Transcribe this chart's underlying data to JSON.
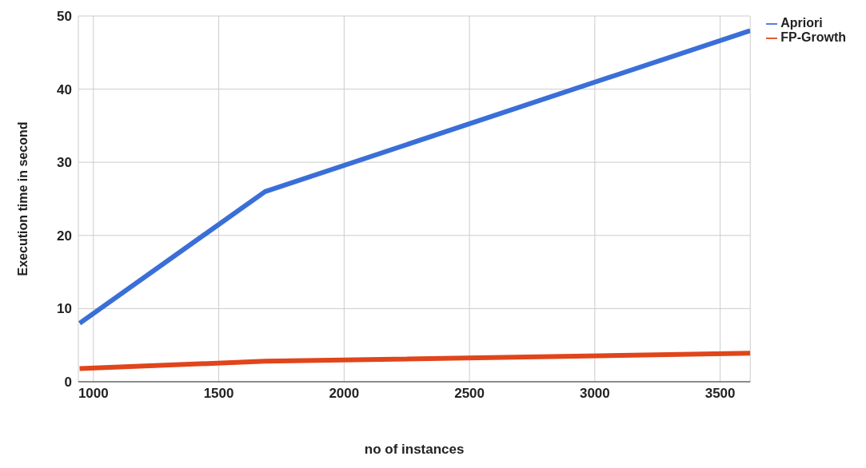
{
  "chart_data": {
    "type": "line",
    "xlabel": "no of instances",
    "ylabel": "Execution time in second",
    "x": [
      945,
      1685,
      3620
    ],
    "series": [
      {
        "name": "Apriori",
        "color": "#3a6fd8",
        "values": [
          8,
          26,
          48
        ]
      },
      {
        "name": "FP-Growth",
        "color": "#e0451b",
        "values": [
          1.8,
          2.8,
          3.9
        ]
      }
    ],
    "xlim": [
      940,
      3620
    ],
    "xticks": [
      1000,
      1500,
      2000,
      2500,
      3000,
      3500
    ],
    "ylim": [
      0,
      50
    ],
    "yticks": [
      0,
      10,
      20,
      30,
      40,
      50
    ],
    "grid": true,
    "legend": "top right",
    "marker": "none",
    "line_style": "solid"
  }
}
